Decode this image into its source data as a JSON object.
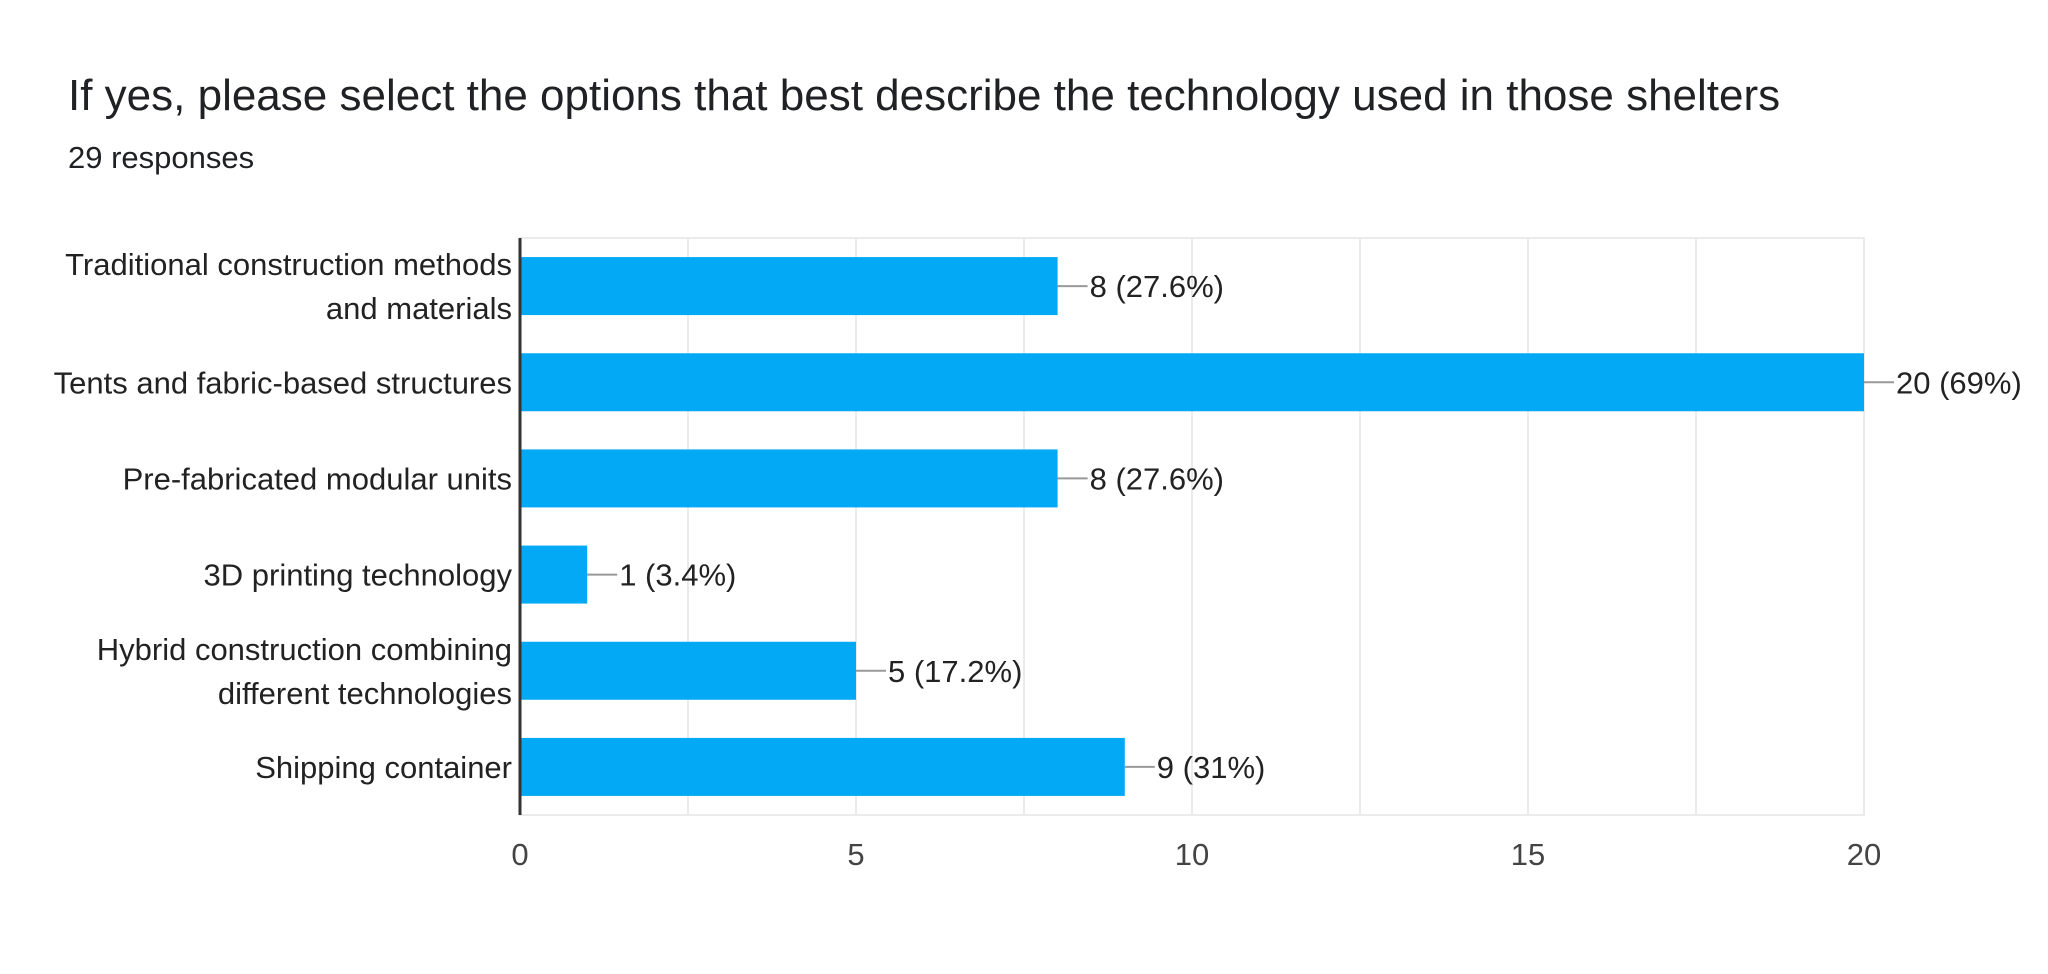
{
  "header": {
    "title": "If yes, please select the options that best describe the technology used in those shelters",
    "responses": "29 responses"
  },
  "colors": {
    "bar": "#03a9f4",
    "grid": "#ebebeb",
    "axis": "#333333",
    "leader": "#999999"
  },
  "chart_data": {
    "type": "bar",
    "orientation": "horizontal",
    "title": "If yes, please select the options that best describe the technology used in those shelters",
    "subtitle": "29 responses",
    "categories": [
      [
        "Traditional construction methods",
        "and materials"
      ],
      [
        "Tents and fabric-based structures"
      ],
      [
        "Pre-fabricated modular units"
      ],
      [
        "3D printing technology"
      ],
      [
        "Hybrid construction combining",
        "different technologies"
      ],
      [
        "Shipping container"
      ]
    ],
    "values": [
      8,
      20,
      8,
      1,
      5,
      9
    ],
    "data_labels": [
      "8 (27.6%)",
      "20 (69%)",
      "8 (27.6%)",
      "1 (3.4%)",
      "5 (17.2%)",
      "9 (31%)"
    ],
    "xlim": [
      0,
      20
    ],
    "xticks": [
      0,
      5,
      10,
      15,
      20
    ],
    "xlabel": "",
    "ylabel": "",
    "grid": true,
    "legend": "none"
  }
}
